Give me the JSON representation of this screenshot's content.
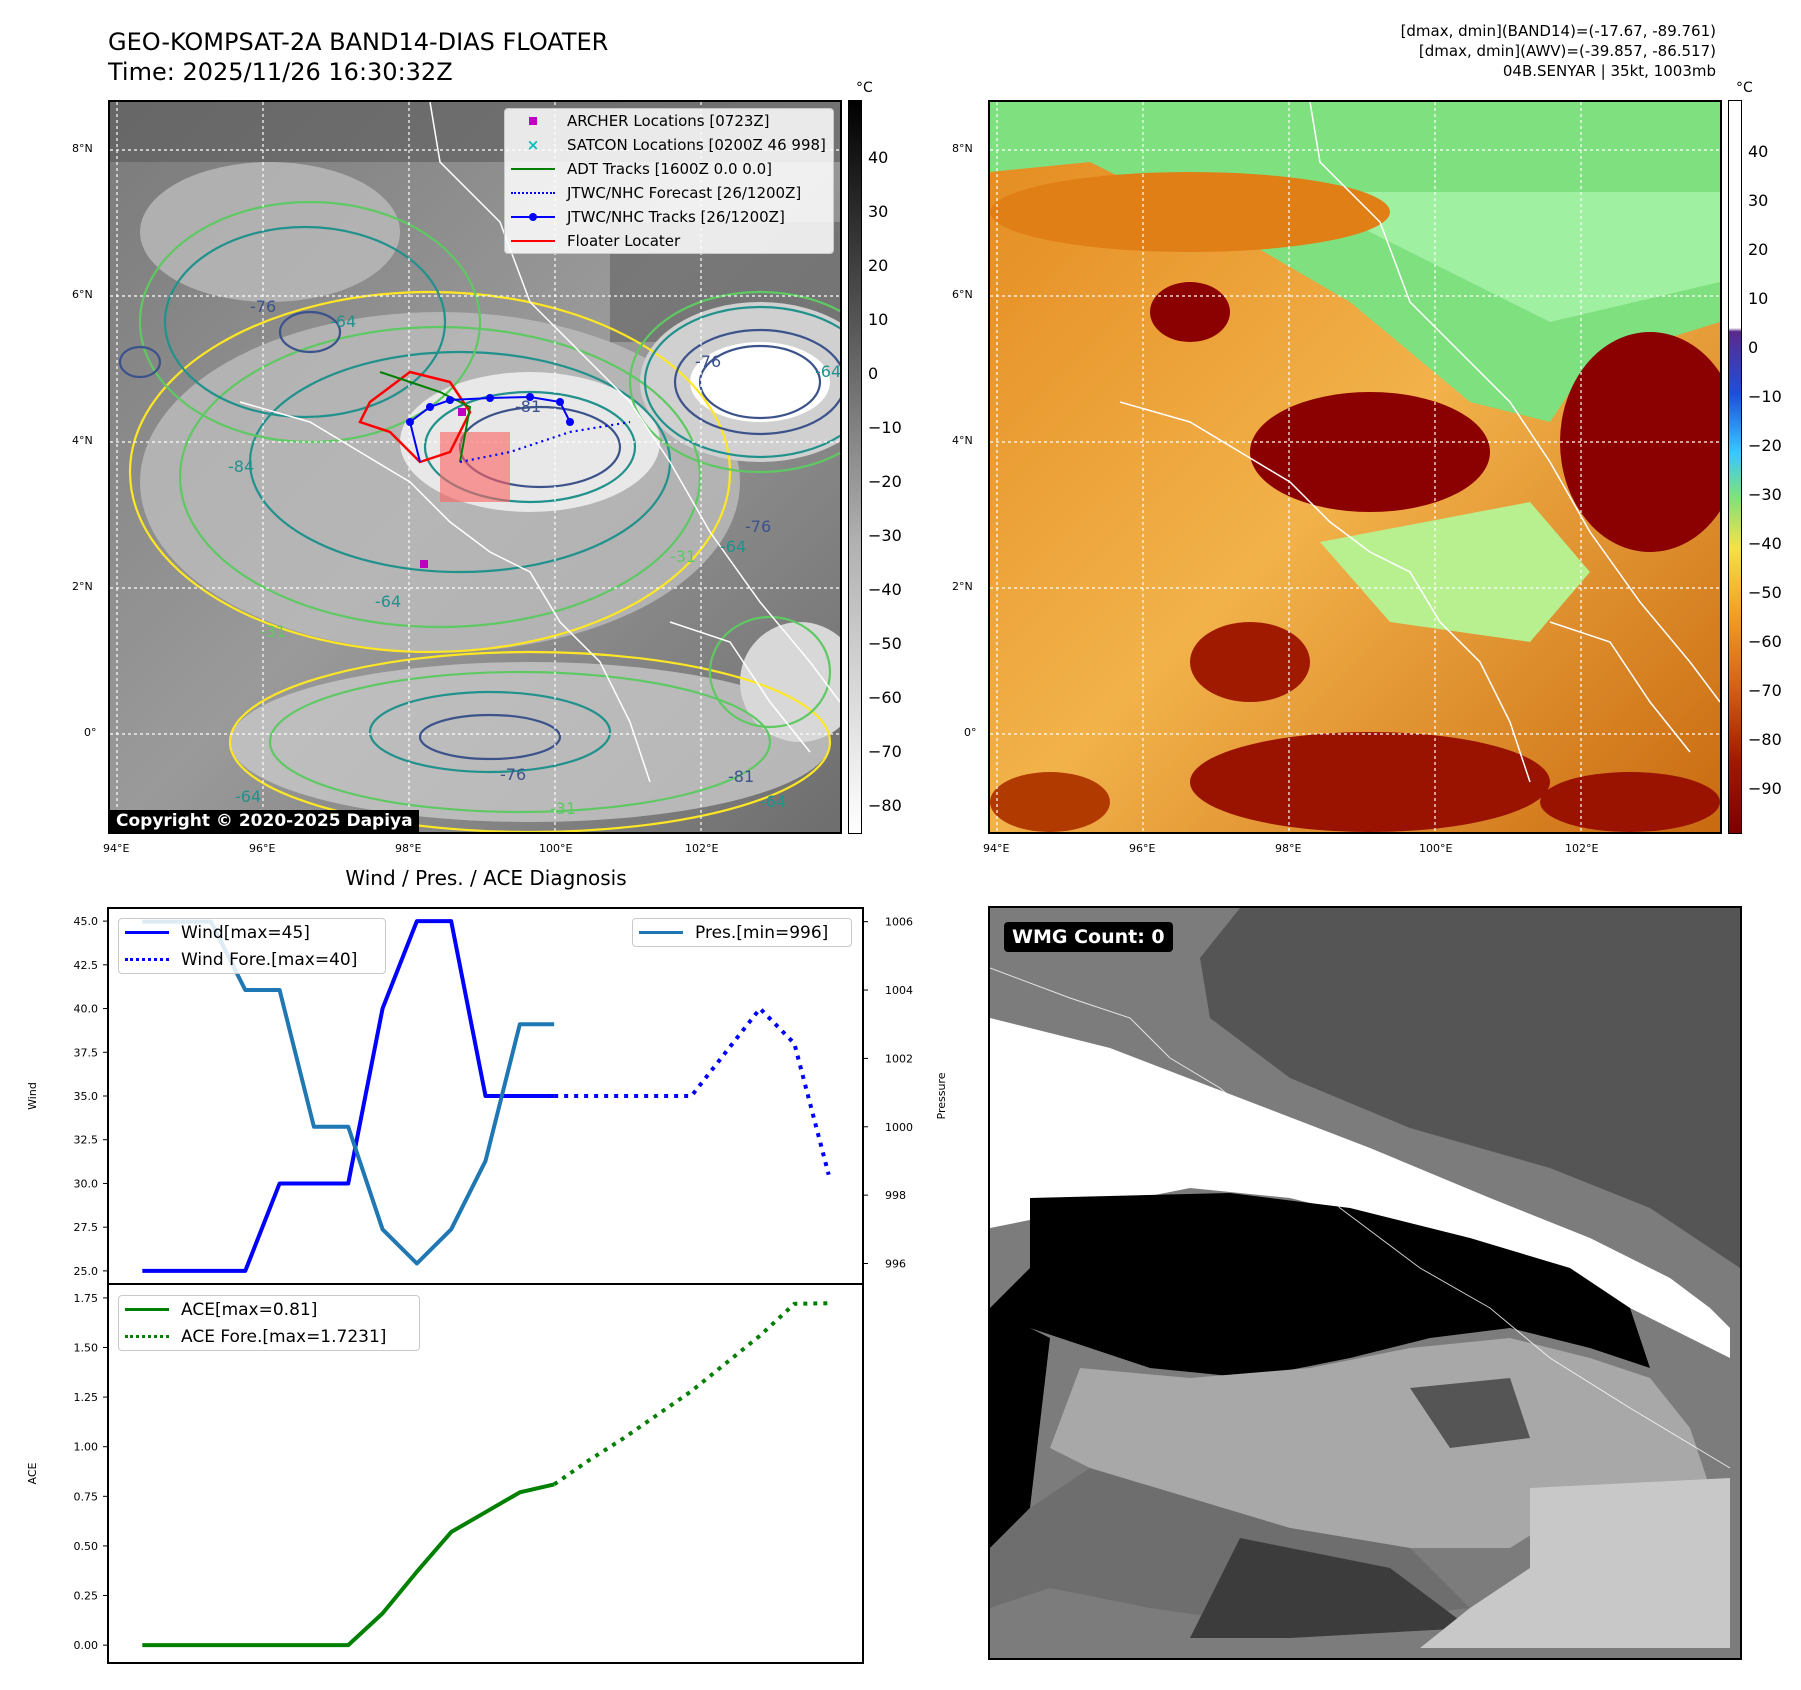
{
  "header": {
    "title_line1": "GEO-KOMPSAT-2A BAND14-DIAS FLOATER",
    "title_line2": "Time: 2025/11/26 16:30:32Z",
    "info_line1": "[dmax, dmin](BAND14)=(-17.67, -89.761)",
    "info_line2": "[dmax, dmin](AWV)=(-39.857, -86.517)",
    "info_line3": "04B.SENYAR | 35kt, 1003mb"
  },
  "ir_map": {
    "lat_labels": [
      "8°N",
      "6°N",
      "4°N",
      "2°N",
      "0°"
    ],
    "lon_labels": [
      "94°E",
      "96°E",
      "98°E",
      "100°E",
      "102°E"
    ],
    "copyright": "Copyright © 2020-2025 Dapiya",
    "contour_labels": [
      "-76",
      "-64",
      "-81",
      "-76",
      "-64",
      "-84",
      "-64",
      "-76",
      "-64",
      "-31",
      "-31",
      "-76",
      "-81",
      "-64",
      "-64",
      "-31"
    ],
    "legend": [
      {
        "label": "ARCHER Locations [0723Z]",
        "color": "#bf00bf",
        "kind": "square"
      },
      {
        "label": "SATCON Locations [0200Z 46 998]",
        "color": "#00bfbf",
        "kind": "x"
      },
      {
        "label": "ADT Tracks [1600Z 0.0 0.0]",
        "color": "#008000",
        "kind": "line"
      },
      {
        "label": "JTWC/NHC Forecast [26/1200Z]",
        "color": "#0000ff",
        "kind": "dotted"
      },
      {
        "label": "JTWC/NHC Tracks [26/1200Z]",
        "color": "#0000ff",
        "kind": "line-dot"
      },
      {
        "label": "Floater Locater",
        "color": "#ff0000",
        "kind": "line"
      }
    ],
    "colorbar_unit": "°C",
    "colorbar_ticks": [
      "40",
      "30",
      "20",
      "10",
      "0",
      "−10",
      "−20",
      "−30",
      "−40",
      "−50",
      "−60",
      "−70",
      "−80"
    ]
  },
  "awv_map": {
    "lat_labels": [
      "8°N",
      "6°N",
      "4°N",
      "2°N",
      "0°"
    ],
    "lon_labels": [
      "94°E",
      "96°E",
      "98°E",
      "100°E",
      "102°E"
    ],
    "colorbar_unit": "°C",
    "colorbar_ticks": [
      "40",
      "30",
      "20",
      "10",
      "0",
      "−10",
      "−20",
      "−30",
      "−40",
      "−50",
      "−60",
      "−70",
      "−80",
      "−90"
    ]
  },
  "wmg": {
    "label": "WMG Count: 0"
  },
  "chart_data": [
    {
      "type": "line",
      "title": "Wind / Pres. / ACE Diagnosis",
      "ylabel": "Wind",
      "ylabel_right": "Pressure",
      "ylim": [
        24.25,
        45.75
      ],
      "ylim_right": [
        995.4,
        1006.4
      ],
      "yticks": [
        "45.0",
        "42.5",
        "40.0",
        "37.5",
        "35.0",
        "32.5",
        "30.0",
        "27.5",
        "25.0"
      ],
      "yticks_right": [
        "1006",
        "1004",
        "1002",
        "1000",
        "998",
        "996"
      ],
      "x": [
        0,
        1,
        2,
        3,
        4,
        5,
        6,
        7,
        8,
        9,
        10,
        11,
        12,
        13,
        14,
        15,
        16,
        17,
        18,
        19,
        20
      ],
      "xlim": [
        -1,
        21
      ],
      "series": [
        {
          "name": "Wind[max=45]",
          "color": "#0000ff",
          "style": "solid",
          "axis": "left",
          "x": [
            0,
            1,
            2,
            3,
            4,
            5,
            6,
            7,
            8,
            9,
            10,
            11,
            12
          ],
          "values": [
            25,
            25,
            25,
            25,
            30,
            30,
            30,
            40,
            45,
            45,
            35,
            35,
            35
          ]
        },
        {
          "name": "Wind Fore.[max=40]",
          "color": "#0000ff",
          "style": "dotted",
          "axis": "left",
          "x": [
            12,
            13,
            14,
            15,
            16,
            17,
            18,
            19,
            20
          ],
          "values": [
            35,
            35,
            35,
            35,
            35,
            37.5,
            40,
            38,
            30.5
          ]
        },
        {
          "name": "Pres.[min=996]",
          "color": "#1f77b4",
          "style": "solid",
          "axis": "right",
          "x": [
            0,
            1,
            2,
            3,
            4,
            5,
            6,
            7,
            8,
            9,
            10,
            11,
            12
          ],
          "values": [
            1006,
            1006,
            1006,
            1004,
            1004,
            1000,
            1000,
            997,
            996,
            997,
            999,
            1003,
            1003
          ]
        }
      ]
    },
    {
      "type": "line",
      "ylabel": "ACE",
      "ylim": [
        -0.09,
        1.82
      ],
      "yticks": [
        "1.75",
        "1.50",
        "1.25",
        "1.00",
        "0.75",
        "0.50",
        "0.25",
        "0.00"
      ],
      "x": [
        0,
        1,
        2,
        3,
        4,
        5,
        6,
        7,
        8,
        9,
        10,
        11,
        12,
        13,
        14,
        15,
        16,
        17,
        18,
        19,
        20
      ],
      "xlim": [
        -1,
        21
      ],
      "series": [
        {
          "name": "ACE[max=0.81]",
          "color": "#008000",
          "style": "solid",
          "x": [
            0,
            1,
            2,
            3,
            4,
            5,
            6,
            7,
            8,
            9,
            10,
            11,
            12
          ],
          "values": [
            0,
            0,
            0,
            0,
            0,
            0,
            0,
            0.16,
            0.37,
            0.57,
            0.67,
            0.77,
            0.81
          ]
        },
        {
          "name": "ACE Fore.[max=1.7231]",
          "color": "#008000",
          "style": "dotted",
          "x": [
            12,
            13,
            14,
            15,
            16,
            17,
            18,
            19,
            20
          ],
          "values": [
            0.81,
            0.93,
            1.04,
            1.16,
            1.28,
            1.42,
            1.56,
            1.72,
            1.7231
          ]
        }
      ]
    }
  ]
}
